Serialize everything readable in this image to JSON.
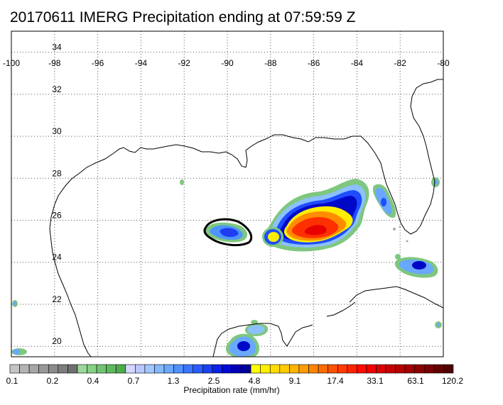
{
  "title": "20170611 IMERG Precipitation ending at 07:59:59 Z",
  "map": {
    "lon_range": [
      -100,
      -80
    ],
    "lat_range": [
      19.5,
      35
    ],
    "lon_ticks": [
      "-100",
      "-98",
      "-96",
      "-94",
      "-92",
      "-90",
      "-88",
      "-86",
      "-84",
      "-82",
      "-80"
    ],
    "lat_ticks": [
      "34",
      "32",
      "30",
      "28",
      "26",
      "24",
      "22",
      "20"
    ],
    "grid": "dotted"
  },
  "colorbar": {
    "title": "Precipitation rate (mm/hr)",
    "labels": [
      "0.1",
      "0.2",
      "0.4",
      "0.7",
      "1.3",
      "2.5",
      "4.8",
      "9.1",
      "17.4",
      "33.1",
      "63.1",
      "120.2"
    ],
    "colors": [
      "#c4c4c4",
      "#b4b4b4",
      "#a6a6a6",
      "#989898",
      "#8a8a8a",
      "#7c7c7c",
      "#6f6f6f",
      "#9ad89a",
      "#86d086",
      "#72c472",
      "#5eb85e",
      "#4cac4c",
      "#d6d6ff",
      "#b8c8ff",
      "#a0c8ff",
      "#84b8ff",
      "#6aa8ff",
      "#5090ff",
      "#3a76ff",
      "#2a5cff",
      "#1c40f0",
      "#0c22e6",
      "#0008d6",
      "#0000b8",
      "#00009a",
      "#ffff00",
      "#ffee00",
      "#ffdd00",
      "#ffcc00",
      "#ffb400",
      "#ff9c00",
      "#ff8400",
      "#ff6c00",
      "#ff5200",
      "#ff3a00",
      "#ff2200",
      "#ff0a00",
      "#f00000",
      "#dc0000",
      "#c80000",
      "#b40000",
      "#a00000",
      "#8c0000",
      "#780000",
      "#640000",
      "#500000"
    ]
  }
}
